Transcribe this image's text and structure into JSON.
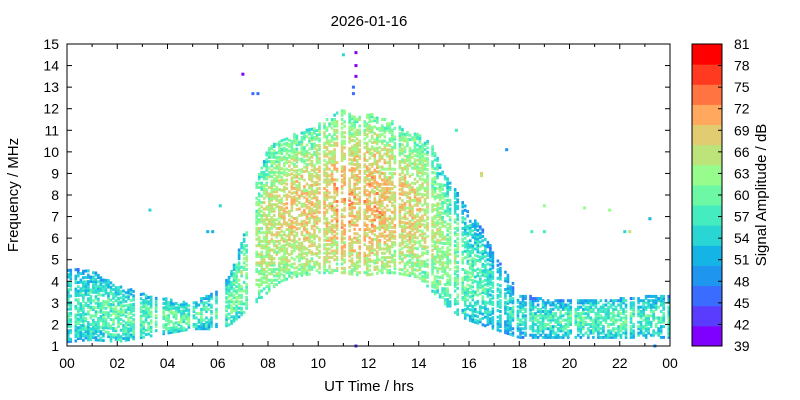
{
  "chart_data": {
    "type": "heatmap",
    "title": "2026-01-16",
    "xlabel": "UT Time / hrs",
    "ylabel": "Frequency / MHz",
    "colorbar_label": "Signal Amplitude / dB",
    "xlim": [
      0,
      24
    ],
    "ylim": [
      1,
      15
    ],
    "xticks": [
      "00",
      "02",
      "04",
      "06",
      "08",
      "10",
      "12",
      "14",
      "16",
      "18",
      "20",
      "22",
      "00"
    ],
    "yticks": [
      "1",
      "2",
      "3",
      "4",
      "5",
      "6",
      "7",
      "8",
      "9",
      "10",
      "11",
      "12",
      "13",
      "14",
      "15"
    ],
    "color_scale": {
      "min": 39,
      "max": 81,
      "ticks": [
        "39",
        "42",
        "45",
        "48",
        "51",
        "54",
        "57",
        "60",
        "63",
        "66",
        "69",
        "72",
        "75",
        "78",
        "81"
      ],
      "colors": [
        "#7f00ff",
        "#5a3cff",
        "#3a6cff",
        "#1e96f0",
        "#14b4e6",
        "#2ad6d4",
        "#44ecc0",
        "#6cf8a4",
        "#96fc8c",
        "#bce47a",
        "#e2cc72",
        "#ffa85e",
        "#ff7440",
        "#ff3a20",
        "#ff0000"
      ]
    },
    "profile": {
      "hours": [
        0,
        1,
        2,
        3,
        4,
        5,
        6,
        6.5,
        7,
        7.5,
        8,
        8.5,
        9,
        9.5,
        10,
        10.5,
        11,
        11.5,
        12,
        12.5,
        13,
        13.5,
        14,
        14.5,
        15,
        15.5,
        16,
        16.5,
        17,
        17.5,
        18,
        19,
        20,
        21,
        22,
        23,
        24
      ],
      "fmin_mhz": [
        1.2,
        1.3,
        1.2,
        1.4,
        1.6,
        1.8,
        1.8,
        2.0,
        2.5,
        3.0,
        3.5,
        4.0,
        4.2,
        4.3,
        4.4,
        4.4,
        4.4,
        4.3,
        4.3,
        4.4,
        4.4,
        4.3,
        4.2,
        3.6,
        3.0,
        2.5,
        2.2,
        2.0,
        1.8,
        1.6,
        1.4,
        1.4,
        1.4,
        1.4,
        1.4,
        1.4,
        1.4
      ],
      "fmax_mhz": [
        4.6,
        4.5,
        3.8,
        3.5,
        3.2,
        3.0,
        3.6,
        4.3,
        6.0,
        8.5,
        10.2,
        10.5,
        10.8,
        11.0,
        11.3,
        11.6,
        12.0,
        11.6,
        11.8,
        11.6,
        11.4,
        11.0,
        10.8,
        10.4,
        9.0,
        8.2,
        7.2,
        6.5,
        5.3,
        4.5,
        3.4,
        3.2,
        3.2,
        3.2,
        3.2,
        3.3,
        3.4
      ],
      "peak_db": [
        57,
        58,
        60,
        59,
        60,
        59,
        58,
        60,
        62,
        64,
        66,
        67,
        68,
        68,
        68,
        69,
        70,
        70,
        70,
        69,
        68,
        68,
        67,
        65,
        63,
        61,
        59,
        58,
        56,
        55,
        56,
        57,
        58,
        58,
        59,
        58,
        57
      ]
    },
    "outliers": [
      {
        "hour": 7.0,
        "mhz": 13.6,
        "db": 40
      },
      {
        "hour": 7.4,
        "mhz": 12.7,
        "db": 46
      },
      {
        "hour": 7.6,
        "mhz": 12.7,
        "db": 46
      },
      {
        "hour": 11.5,
        "mhz": 14.6,
        "db": 39
      },
      {
        "hour": 11.5,
        "mhz": 14.0,
        "db": 39
      },
      {
        "hour": 11.5,
        "mhz": 13.5,
        "db": 39
      },
      {
        "hour": 11.4,
        "mhz": 13.0,
        "db": 46
      },
      {
        "hour": 11.4,
        "mhz": 12.7,
        "db": 46
      },
      {
        "hour": 11.0,
        "mhz": 14.5,
        "db": 55
      },
      {
        "hour": 11.5,
        "mhz": 1.0,
        "db": 42
      },
      {
        "hour": 3.3,
        "mhz": 7.3,
        "db": 55
      },
      {
        "hour": 5.6,
        "mhz": 6.3,
        "db": 52
      },
      {
        "hour": 5.8,
        "mhz": 6.3,
        "db": 52
      },
      {
        "hour": 6.1,
        "mhz": 7.5,
        "db": 55
      },
      {
        "hour": 15.5,
        "mhz": 11.0,
        "db": 58
      },
      {
        "hour": 16.5,
        "mhz": 9.0,
        "db": 68
      },
      {
        "hour": 16.5,
        "mhz": 8.9,
        "db": 66
      },
      {
        "hour": 17.5,
        "mhz": 10.1,
        "db": 48
      },
      {
        "hour": 18.5,
        "mhz": 6.3,
        "db": 58
      },
      {
        "hour": 19.0,
        "mhz": 7.5,
        "db": 62
      },
      {
        "hour": 19.0,
        "mhz": 6.3,
        "db": 58
      },
      {
        "hour": 20.6,
        "mhz": 7.4,
        "db": 64
      },
      {
        "hour": 21.6,
        "mhz": 7.3,
        "db": 63
      },
      {
        "hour": 22.2,
        "mhz": 6.3,
        "db": 55
      },
      {
        "hour": 22.4,
        "mhz": 6.3,
        "db": 66
      },
      {
        "hour": 23.2,
        "mhz": 6.9,
        "db": 51
      },
      {
        "hour": 23.4,
        "mhz": 1.0,
        "db": 48
      }
    ]
  }
}
